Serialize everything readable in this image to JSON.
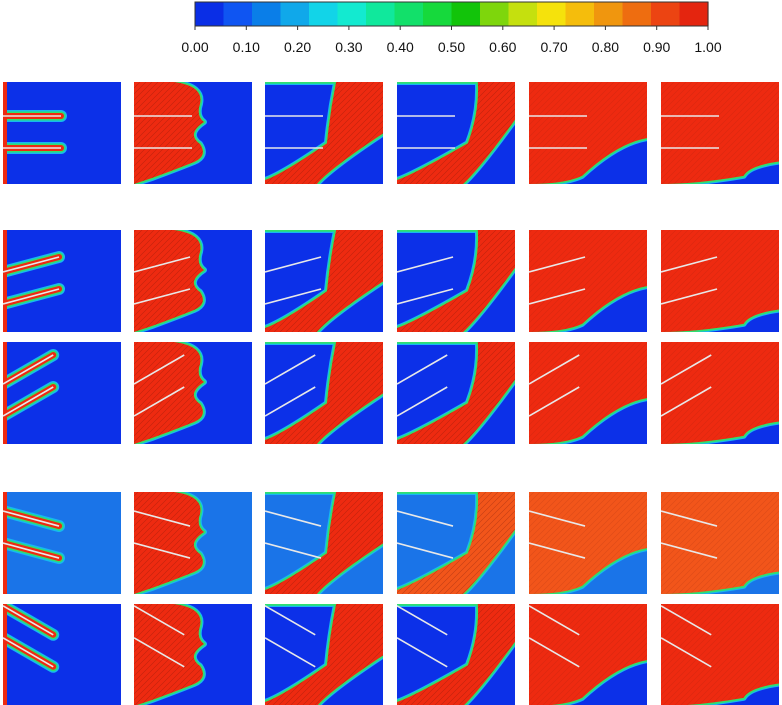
{
  "colorbar": {
    "stops": [
      "#0a2ee6",
      "#0f55f2",
      "#0a7ee8",
      "#10a8ea",
      "#12d4e8",
      "#13ead0",
      "#10e89c",
      "#12e06a",
      "#16d93c",
      "#12c40a",
      "#7ed60c",
      "#c5e00e",
      "#f5e20c",
      "#f5bd0c",
      "#f0960e",
      "#ee6d10",
      "#ec4412",
      "#e4250f"
    ],
    "ticks": [
      "0.00",
      "0.10",
      "0.20",
      "0.30",
      "0.40",
      "0.50",
      "0.60",
      "0.70",
      "0.80",
      "0.90",
      "1.00"
    ]
  },
  "colors": {
    "liquid_blue": "#0c30e8",
    "liquid_lightblue": "#1a74e8",
    "air_red": "#ee2a10",
    "air_orange": "#f2551a",
    "interface": "#2fe070",
    "interface_outer": "#16b8f0",
    "plate": "#e8e8e8",
    "texture": "#6a1005"
  },
  "panels": {
    "rows": 5,
    "cols": 6,
    "row_plate_angle_deg": [
      0,
      15,
      30,
      15,
      30
    ],
    "row_plate_side": [
      "left",
      "left",
      "left",
      "right",
      "right"
    ],
    "row_background": [
      "blue",
      "blue",
      "blue",
      "lightblue",
      "blue"
    ],
    "col_fill_fraction": [
      0.0,
      0.35,
      0.55,
      0.7,
      0.82,
      0.93
    ]
  }
}
